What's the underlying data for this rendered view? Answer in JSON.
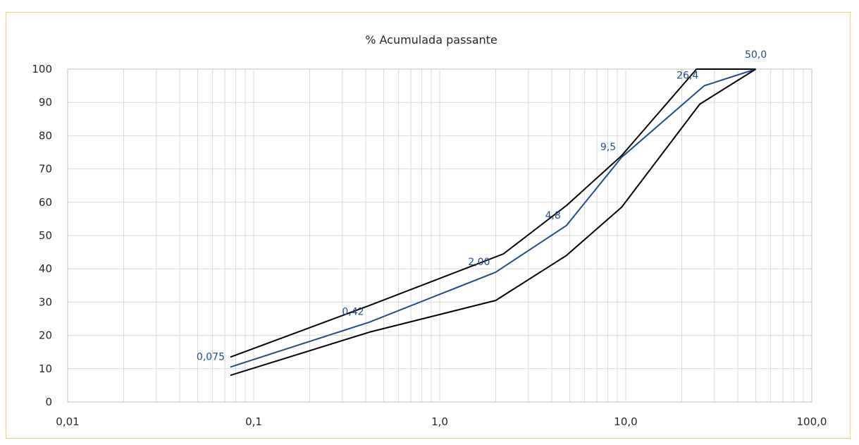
{
  "chart_data": {
    "type": "line",
    "title": "% Acumulada passante",
    "xlabel": "",
    "ylabel": "",
    "x_scale": "log",
    "xlim": [
      0.01,
      100.0
    ],
    "ylim": [
      0,
      100
    ],
    "grid": true,
    "legend": "none",
    "x_tick_labels": [
      "0,01",
      "0,1",
      "1,0",
      "10,0",
      "100,0"
    ],
    "x_tick_values": [
      0.01,
      0.1,
      1.0,
      10.0,
      100.0
    ],
    "y_ticks": [
      0,
      10,
      20,
      30,
      40,
      50,
      60,
      70,
      80,
      90,
      100
    ],
    "series": [
      {
        "color": "#000000",
        "x": [
          0.075,
          0.42,
          2.2,
          4.8,
          9.5,
          24.0,
          50.0
        ],
        "y": [
          13.5,
          29,
          44.5,
          59,
          74,
          100,
          100
        ]
      },
      {
        "color": "#1f4e8c",
        "x": [
          0.075,
          0.42,
          2.0,
          4.8,
          9.5,
          26.4,
          50.0
        ],
        "y": [
          10.5,
          24,
          39,
          53,
          73.5,
          95,
          100
        ],
        "data_labels": [
          "0,075",
          "0,42",
          "2,00",
          "4,8",
          "9,5",
          "26,4",
          "50,0"
        ]
      },
      {
        "color": "#000000",
        "x": [
          0.075,
          0.42,
          2.0,
          4.8,
          9.5,
          25.0,
          50.0
        ],
        "y": [
          8,
          21,
          30.5,
          44,
          58.5,
          89.5,
          100
        ]
      }
    ]
  }
}
